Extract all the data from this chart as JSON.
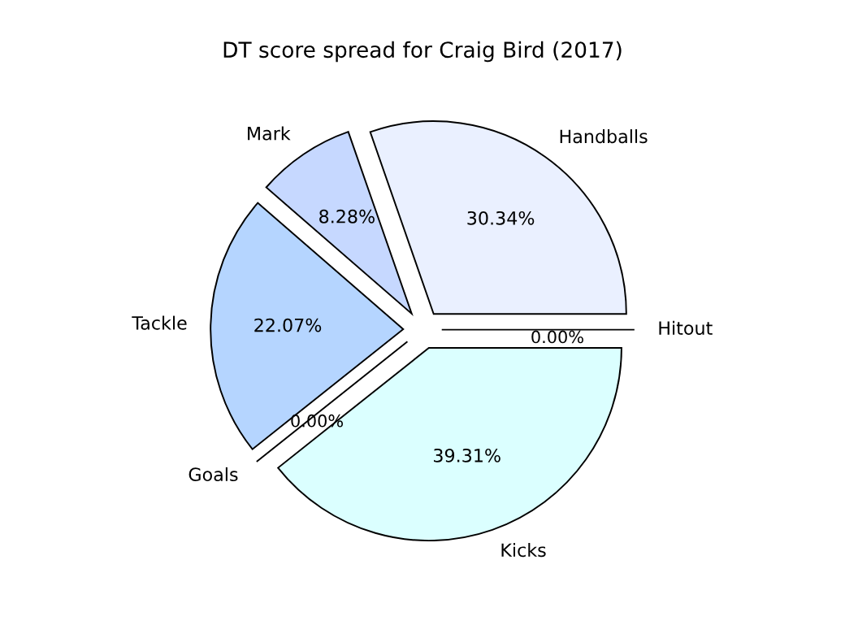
{
  "chart_data": {
    "type": "pie",
    "title": "DT score spread for Craig Bird (2017)",
    "categories": [
      "Hitout",
      "Handballs",
      "Mark",
      "Tackle",
      "Goals",
      "Kicks"
    ],
    "values": [
      0.0,
      30.34,
      8.28,
      22.07,
      0.0,
      39.31
    ],
    "value_labels": [
      "0.00%",
      "30.34%",
      "8.28%",
      "22.07%",
      "0.00%",
      "39.31%"
    ],
    "colors": [
      "#eeeeff",
      "#eaf0ff",
      "#c6d8ff",
      "#b5d5ff",
      "#a8c8ff",
      "#dbffff"
    ],
    "legend": false
  }
}
